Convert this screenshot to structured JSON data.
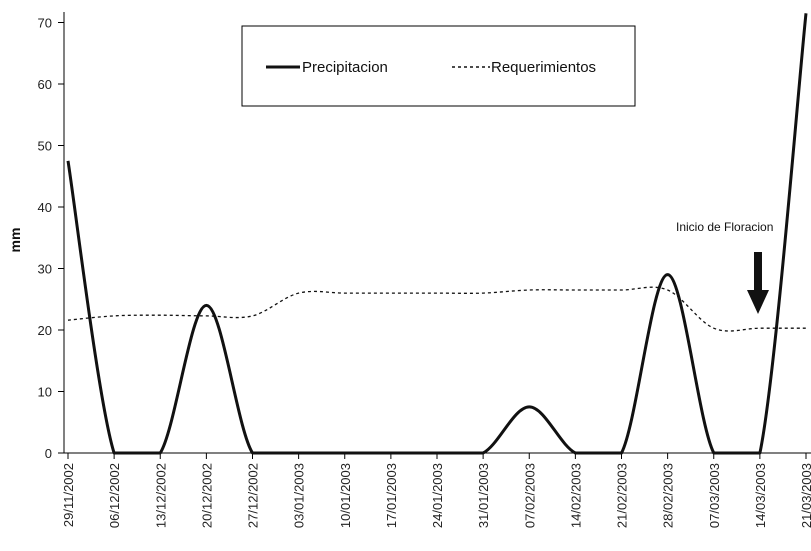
{
  "chart_data": {
    "type": "line",
    "title": "",
    "xlabel": "",
    "ylabel": "mm",
    "ylim": [
      0,
      72
    ],
    "yticks": [
      0,
      10,
      20,
      30,
      40,
      50,
      60,
      70
    ],
    "grid": false,
    "legend_position": "top-center",
    "categories": [
      "29/11/2002",
      "06/12/2002",
      "13/12/2002",
      "20/12/2002",
      "27/12/2002",
      "03/01/2003",
      "10/01/2003",
      "17/01/2003",
      "24/01/2003",
      "31/01/2003",
      "07/02/2003",
      "14/02/2003",
      "21/02/2003",
      "28/02/2003",
      "07/03/2003",
      "14/03/2003",
      "21/03/2003"
    ],
    "series": [
      {
        "name": "Precipitacion",
        "style": "solid",
        "color": "#111111",
        "values": [
          47.5,
          0,
          0,
          24,
          0,
          0,
          0,
          0,
          0,
          0,
          7.5,
          0,
          0,
          29,
          0,
          0,
          71.5
        ]
      },
      {
        "name": "Requerimientos",
        "style": "dotted",
        "color": "#111111",
        "values": [
          21.6,
          22.3,
          22.4,
          22.3,
          22.3,
          26,
          26,
          26,
          26,
          26,
          26.5,
          26.5,
          26.5,
          26.5,
          20.3,
          20.3,
          20.3
        ]
      }
    ],
    "annotation": {
      "text": "Inicio de Floracion",
      "category": "14/03/2003",
      "points_to": 21
    }
  }
}
